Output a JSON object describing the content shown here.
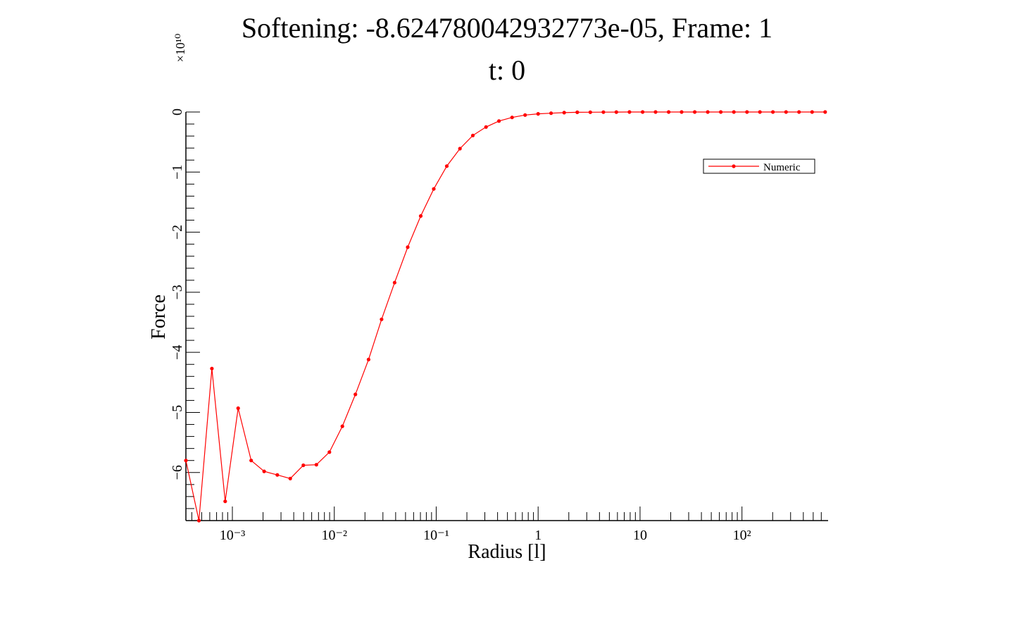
{
  "title_line1": "Softening: -8.624780042932773e-05, Frame: 1",
  "title_line2": "t: 0",
  "colors": {
    "series": "#ff0000",
    "axis": "#000000",
    "background": "#ffffff"
  },
  "chart_data": {
    "type": "line",
    "title": "Softening: -8.624780042932773e-05, Frame: 1\nt: 0",
    "xlabel": "Radius [l]",
    "ylabel": "Force",
    "x_scale": "log",
    "y_multiplier_label": "×10¹⁰",
    "xlim": [
      0.00035,
      700
    ],
    "ylim": [
      -6.8,
      0
    ],
    "x_ticks": [
      {
        "value": 0.001,
        "label": "10⁻³"
      },
      {
        "value": 0.01,
        "label": "10⁻²"
      },
      {
        "value": 0.1,
        "label": "10⁻¹"
      },
      {
        "value": 1,
        "label": "1"
      },
      {
        "value": 10,
        "label": "10"
      },
      {
        "value": 100,
        "label": "10²"
      }
    ],
    "y_ticks": [
      {
        "value": 0,
        "label": "0"
      },
      {
        "value": -1,
        "label": "−1"
      },
      {
        "value": -2,
        "label": "−2"
      },
      {
        "value": -3,
        "label": "−3"
      },
      {
        "value": -4,
        "label": "−4"
      },
      {
        "value": -5,
        "label": "−5"
      },
      {
        "value": -6,
        "label": "−6"
      }
    ],
    "grid": false,
    "legend_position": "top-right",
    "series": [
      {
        "name": "Numeric",
        "color": "#ff0000",
        "x": [
          0.00035,
          0.00047,
          0.00063,
          0.00085,
          0.00114,
          0.00153,
          0.00205,
          0.00276,
          0.0037,
          0.00497,
          0.00667,
          0.00896,
          0.012,
          0.0161,
          0.0217,
          0.0291,
          0.0391,
          0.0525,
          0.0705,
          0.0946,
          0.127,
          0.171,
          0.229,
          0.308,
          0.413,
          0.555,
          0.745,
          1.0,
          1.34,
          1.8,
          2.42,
          3.25,
          4.37,
          5.86,
          7.87,
          10.6,
          14.2,
          19.1,
          25.6,
          34.4,
          46.2,
          62.0,
          83.3,
          112,
          150,
          201,
          271,
          363,
          488,
          655
        ],
        "y": [
          -5.8,
          -6.8,
          -4.27,
          -6.48,
          -4.93,
          -5.8,
          -5.98,
          -6.04,
          -6.1,
          -5.88,
          -5.87,
          -5.66,
          -5.23,
          -4.7,
          -4.12,
          -3.45,
          -2.84,
          -2.25,
          -1.73,
          -1.28,
          -0.9,
          -0.61,
          -0.39,
          -0.25,
          -0.15,
          -0.09,
          -0.05,
          -0.03,
          -0.02,
          -0.01,
          -0.005,
          -0.003,
          -0.002,
          -0.001,
          0,
          0,
          0,
          0,
          0,
          0,
          0,
          0,
          0,
          0,
          0,
          0,
          0,
          0,
          0,
          0
        ]
      }
    ]
  }
}
